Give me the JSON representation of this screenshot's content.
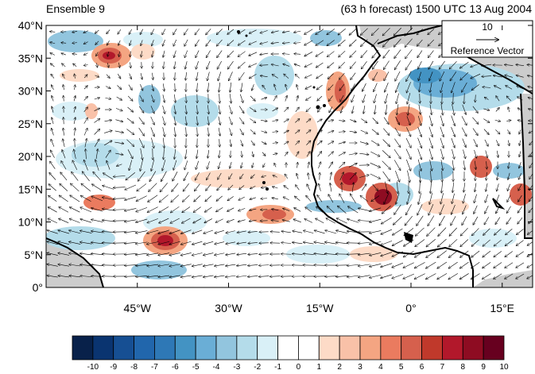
{
  "header": {
    "left_title": "Ensemble 9",
    "right_title": "(63 h forecast) 1500 UTC 13 Aug 2004"
  },
  "map": {
    "lon_range": [
      -60,
      20
    ],
    "lat_range": [
      0,
      40
    ],
    "lat_ticks": [
      {
        "value": 40,
        "label": "40°N"
      },
      {
        "value": 35,
        "label": "35°N"
      },
      {
        "value": 30,
        "label": "30°N"
      },
      {
        "value": 25,
        "label": "25°N"
      },
      {
        "value": 20,
        "label": "20°N"
      },
      {
        "value": 15,
        "label": "15°N"
      },
      {
        "value": 10,
        "label": "10°N"
      },
      {
        "value": 5,
        "label": "5°N"
      },
      {
        "value": 0,
        "label": "0°"
      }
    ],
    "lon_ticks": [
      {
        "value": -45,
        "label": "45°W"
      },
      {
        "value": -30,
        "label": "30°W"
      },
      {
        "value": -15,
        "label": "15°W"
      },
      {
        "value": 0,
        "label": "0°"
      },
      {
        "value": 15,
        "label": "15°E"
      }
    ],
    "land_color": "#cccccc",
    "coast_color": "#000000"
  },
  "reference_vector": {
    "value": "10",
    "label": "Reference Vector"
  },
  "colorbar": {
    "labels": [
      "-10",
      "-9",
      "-8",
      "-7",
      "-6",
      "-5",
      "-4",
      "-3",
      "-2",
      "-1",
      "0",
      "1",
      "2",
      "3",
      "4",
      "5",
      "6",
      "7",
      "8",
      "9",
      "10"
    ],
    "colors": [
      "#08214a",
      "#0a3470",
      "#164f93",
      "#2166ac",
      "#2e78b6",
      "#4393c3",
      "#6aaed6",
      "#92c5de",
      "#b4dcea",
      "#d9f0f7",
      "#ffffff",
      "#ffffff",
      "#fddbc7",
      "#f9c1a8",
      "#f4a582",
      "#ea7b5f",
      "#d6604d",
      "#c0392b",
      "#b2182b",
      "#8e0c22",
      "#67001f"
    ]
  }
}
